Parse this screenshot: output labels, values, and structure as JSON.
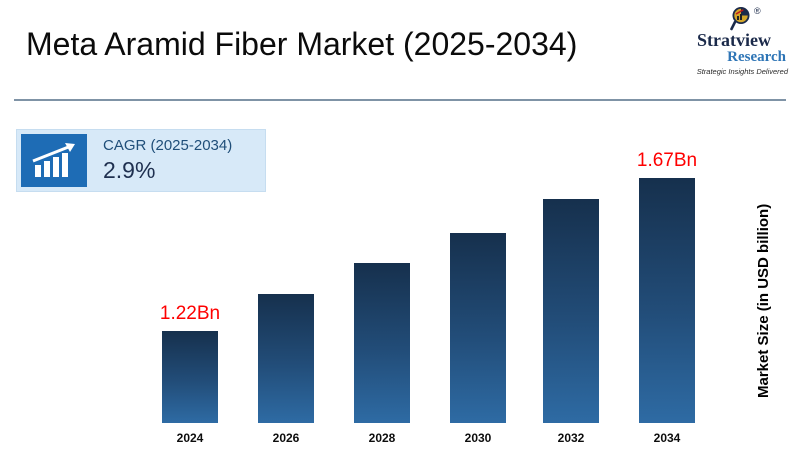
{
  "page": {
    "title": "Meta Aramid Fiber Market (2025-2034)"
  },
  "logo": {
    "name_line1": "Stratview",
    "name_line2": "Research",
    "registered_mark": "®",
    "tagline": "Strategic Insights Delivered",
    "brand_navy": "#1b2a4a",
    "brand_blue": "#2e75b6"
  },
  "cagr_badge": {
    "label": "CAGR (2025-2034)",
    "value": "2.9%",
    "icon": "bar-chart-growth-icon",
    "bg_color": "#d7e9f8",
    "icon_bg_color": "#1e6cb5"
  },
  "chart_data": {
    "type": "bar",
    "title": "Meta Aramid Fiber Market (2025-2034)",
    "categories": [
      "2024",
      "2026",
      "2028",
      "2030",
      "2032",
      "2034"
    ],
    "values": [
      1.22,
      1.33,
      1.42,
      1.51,
      1.61,
      1.67
    ],
    "unit": "USD billion",
    "data_labels": [
      "1.22Bn",
      "",
      "",
      "",
      "",
      "1.67Bn"
    ],
    "xlabel": "",
    "ylabel": "Market Size (in USD billion)",
    "ylim": [
      0.95,
      1.8
    ],
    "grid": false,
    "legend": false,
    "bar_gradient_top": "#16304d",
    "bar_gradient_bottom": "#2e6ba4",
    "data_label_color": "#fe0000"
  }
}
